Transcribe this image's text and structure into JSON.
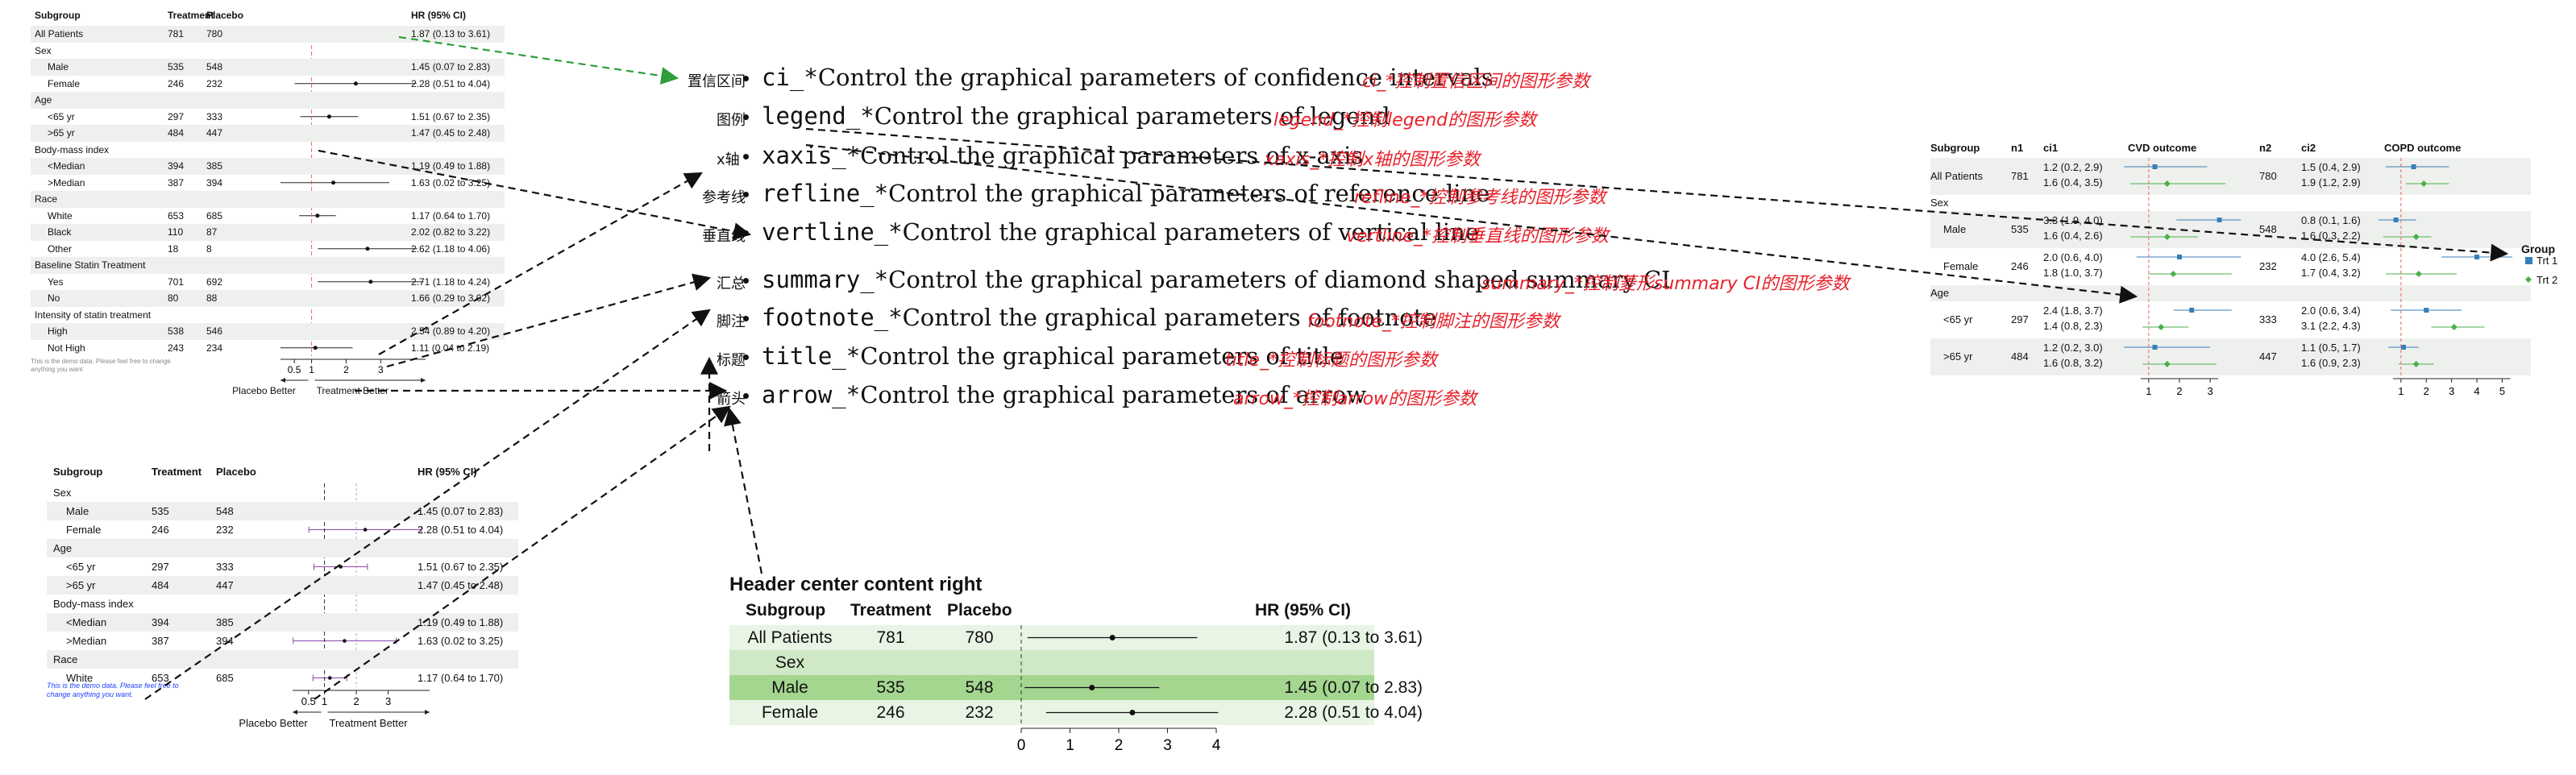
{
  "fp1": {
    "headers": [
      "Subgroup",
      "Treatment",
      "Placebo",
      "HR (95% CI)"
    ],
    "rows": [
      {
        "label": "All Patients",
        "t": "781",
        "p": "780",
        "hr": "1.87 (0.13 to 3.61)",
        "indent": false,
        "est": 1.87,
        "lo": 0.13,
        "hi": 3.61
      },
      {
        "label": "Sex",
        "t": "",
        "p": "",
        "hr": "",
        "indent": false
      },
      {
        "label": "Male",
        "t": "535",
        "p": "548",
        "hr": "1.45 (0.07 to 2.83)",
        "indent": true,
        "est": 1.45,
        "lo": 0.07,
        "hi": 2.83
      },
      {
        "label": "Female",
        "t": "246",
        "p": "232",
        "hr": "2.28 (0.51 to 4.04)",
        "indent": true,
        "est": 2.28,
        "lo": 0.51,
        "hi": 4.04
      },
      {
        "label": "Age",
        "t": "",
        "p": "",
        "hr": "",
        "indent": false
      },
      {
        "label": "<65 yr",
        "t": "297",
        "p": "333",
        "hr": "1.51 (0.67 to 2.35)",
        "indent": true,
        "est": 1.51,
        "lo": 0.67,
        "hi": 2.35
      },
      {
        "label": ">65 yr",
        "t": "484",
        "p": "447",
        "hr": "1.47 (0.45 to 2.48)",
        "indent": true,
        "est": 1.47,
        "lo": 0.45,
        "hi": 2.48
      },
      {
        "label": "Body-mass index",
        "t": "",
        "p": "",
        "hr": "",
        "indent": false
      },
      {
        "label": "<Median",
        "t": "394",
        "p": "385",
        "hr": "1.19 (0.49 to 1.88)",
        "indent": true,
        "est": 1.19,
        "lo": 0.49,
        "hi": 1.88
      },
      {
        "label": ">Median",
        "t": "387",
        "p": "394",
        "hr": "1.63 (0.02 to 3.25)",
        "indent": true,
        "est": 1.63,
        "lo": 0.02,
        "hi": 3.25
      },
      {
        "label": "Race",
        "t": "",
        "p": "",
        "hr": "",
        "indent": false
      },
      {
        "label": "White",
        "t": "653",
        "p": "685",
        "hr": "1.17 (0.64 to 1.70)",
        "indent": true,
        "est": 1.17,
        "lo": 0.64,
        "hi": 1.7
      },
      {
        "label": "Black",
        "t": "110",
        "p": "87",
        "hr": "2.02 (0.82 to 3.22)",
        "indent": true,
        "est": 2.02,
        "lo": 0.82,
        "hi": 3.22
      },
      {
        "label": "Other",
        "t": "18",
        "p": "8",
        "hr": "2.62 (1.18 to 4.06)",
        "indent": true,
        "est": 2.62,
        "lo": 1.18,
        "hi": 4.06
      },
      {
        "label": "Baseline Statin Treatment",
        "t": "",
        "p": "",
        "hr": "",
        "indent": false
      },
      {
        "label": "Yes",
        "t": "701",
        "p": "692",
        "hr": "2.71 (1.18 to 4.24)",
        "indent": true,
        "est": 2.71,
        "lo": 1.18,
        "hi": 4.24
      },
      {
        "label": "No",
        "t": "80",
        "p": "88",
        "hr": "1.66 (0.29 to 3.02)",
        "indent": true,
        "est": 1.66,
        "lo": 0.29,
        "hi": 3.02
      },
      {
        "label": "Intensity of statin treatment",
        "t": "",
        "p": "",
        "hr": "",
        "indent": false
      },
      {
        "label": "High",
        "t": "538",
        "p": "546",
        "hr": "2.54 (0.89 to 4.20)",
        "indent": true,
        "est": 2.54,
        "lo": 0.89,
        "hi": 4.2
      },
      {
        "label": "Not High",
        "t": "243",
        "p": "234",
        "hr": "1.11 (0.04 to 2.19)",
        "indent": true,
        "est": 1.11,
        "lo": 0.04,
        "hi": 2.19
      }
    ],
    "ticks": [
      "0.5",
      "1",
      "2",
      "3"
    ],
    "left_arrow": "Placebo Better",
    "right_arrow": "Treatment Better",
    "note": "This is the demo data. Please feel free to change anything you want"
  },
  "fp2": {
    "headers": [
      "Subgroup",
      "Treatment",
      "Placebo",
      "HR (95% CI)"
    ],
    "rows": [
      {
        "label": "Sex",
        "t": "",
        "p": "",
        "hr": "",
        "indent": false
      },
      {
        "label": "Male",
        "t": "535",
        "p": "548",
        "hr": "1.45 (0.07 to 2.83)",
        "indent": true,
        "est": 1.45,
        "lo": 0.07,
        "hi": 2.83
      },
      {
        "label": "Female",
        "t": "246",
        "p": "232",
        "hr": "2.28 (0.51 to 4.04)",
        "indent": true,
        "est": 2.28,
        "lo": 0.51,
        "hi": 4.04
      },
      {
        "label": "Age",
        "t": "",
        "p": "",
        "hr": "",
        "indent": false
      },
      {
        "label": "<65 yr",
        "t": "297",
        "p": "333",
        "hr": "1.51 (0.67 to 2.35)",
        "indent": true,
        "est": 1.51,
        "lo": 0.67,
        "hi": 2.35
      },
      {
        "label": ">65 yr",
        "t": "484",
        "p": "447",
        "hr": "1.47 (0.45 to 2.48)",
        "indent": true,
        "est": 1.47,
        "lo": 0.45,
        "hi": 2.48
      },
      {
        "label": "Body-mass index",
        "t": "",
        "p": "",
        "hr": "",
        "indent": false
      },
      {
        "label": "<Median",
        "t": "394",
        "p": "385",
        "hr": "1.19 (0.49 to 1.88)",
        "indent": true,
        "est": 1.19,
        "lo": 0.49,
        "hi": 1.88
      },
      {
        "label": ">Median",
        "t": "387",
        "p": "394",
        "hr": "1.63 (0.02 to 3.25)",
        "indent": true,
        "est": 1.63,
        "lo": 0.02,
        "hi": 3.25
      },
      {
        "label": "Race",
        "t": "",
        "p": "",
        "hr": "",
        "indent": false
      },
      {
        "label": "White",
        "t": "653",
        "p": "685",
        "hr": "1.17 (0.64 to 1.70)",
        "indent": true,
        "est": 1.17,
        "lo": 0.64,
        "hi": 1.7
      }
    ],
    "ticks": [
      "0.5",
      "1",
      "2",
      "3"
    ],
    "left_arrow": "Placebo Better",
    "right_arrow": "Treatment Better",
    "note": "This is the demo data. Please feel free to change anything you want."
  },
  "fp3": {
    "title": "Header center content right",
    "headers": [
      "Subgroup",
      "Treatment",
      "Placebo",
      "HR (95% CI)"
    ],
    "rows": [
      {
        "label": "All Patients",
        "t": "781",
        "p": "780",
        "hr": "1.87 (0.13 to 3.61)",
        "est": 1.87,
        "lo": 0.13,
        "hi": 3.61
      },
      {
        "label": "Sex",
        "t": "",
        "p": "",
        "hr": ""
      },
      {
        "label": "Male",
        "t": "535",
        "p": "548",
        "hr": "1.45 (0.07 to 2.83)",
        "est": 1.45,
        "lo": 0.07,
        "hi": 2.83
      },
      {
        "label": "Female",
        "t": "246",
        "p": "232",
        "hr": "2.28 (0.51 to 4.04)",
        "est": 2.28,
        "lo": 0.51,
        "hi": 4.04
      }
    ],
    "ticks": [
      "0",
      "1",
      "2",
      "3",
      "4"
    ]
  },
  "fp4": {
    "headers": [
      "Subgroup",
      "n1",
      "ci1",
      "CVD outcome",
      "n2",
      "ci2",
      "COPD outcome"
    ],
    "rows": [
      {
        "label": "All Patients",
        "n1": "781",
        "ci1a": "1.2 (0.2, 2.9)",
        "ci1b": "1.6 (0.4, 3.5)",
        "n2": "780",
        "ci2a": "1.5 (0.4, 2.9)",
        "ci2b": "1.9 (1.2, 2.9)",
        "indent": false
      },
      {
        "label": "Sex",
        "n1": "",
        "ci1a": "",
        "ci1b": "",
        "n2": "",
        "ci2a": "",
        "ci2b": "",
        "indent": false
      },
      {
        "label": "Male",
        "n1": "535",
        "ci1a": "3.3 (1.9, 4.0)",
        "ci1b": "1.6 (0.4, 2.6)",
        "n2": "548",
        "ci2a": "0.8 (0.1, 1.6)",
        "ci2b": "1.6 (0.3, 2.2)",
        "indent": true
      },
      {
        "label": "Female",
        "n1": "246",
        "ci1a": "2.0 (0.6, 4.0)",
        "ci1b": "1.8 (1.0, 3.7)",
        "n2": "232",
        "ci2a": "4.0 (2.6, 5.4)",
        "ci2b": "1.7 (0.4, 3.2)",
        "indent": true
      },
      {
        "label": "Age",
        "n1": "",
        "ci1a": "",
        "ci1b": "",
        "n2": "",
        "ci2a": "",
        "ci2b": "",
        "indent": false
      },
      {
        "label": "<65 yr",
        "n1": "297",
        "ci1a": "2.4 (1.8, 3.7)",
        "ci1b": "1.4 (0.8, 2.3)",
        "n2": "333",
        "ci2a": "2.0 (0.6, 3.4)",
        "ci2b": "3.1 (2.2, 4.3)",
        "indent": true
      },
      {
        "label": ">65 yr",
        "n1": "484",
        "ci1a": "1.2 (0.2, 3.0)",
        "ci1b": "1.6 (0.8, 3.2)",
        "n2": "447",
        "ci2a": "1.1 (0.5, 1.7)",
        "ci2b": "1.6 (0.9, 2.3)",
        "indent": true
      }
    ],
    "ticks1": [
      "1",
      "2",
      "3"
    ],
    "ticks2": [
      "1",
      "2",
      "3",
      "4",
      "5"
    ],
    "legend_title": "Group",
    "legend": [
      "Trt 1",
      "Trt 2"
    ],
    "colors": {
      "trt1": "#377eb8",
      "trt2": "#4daf4a"
    }
  },
  "params": [
    {
      "cn": "置信区间",
      "code": "ci_*",
      "text": "Control the graphical parameters of confidence intervals",
      "red": "ci_*控制置信区间的图形参数"
    },
    {
      "cn": "图例",
      "code": "legend_*",
      "text": "Control the graphical parameters of legend",
      "red": "legend_*控制legend的图形参数"
    },
    {
      "cn": "x轴",
      "code": "xaxis_*",
      "text": "Control the graphical parameters of x-axis",
      "red": "xaxis_*控制x轴的图形参数"
    },
    {
      "cn": "参考线",
      "code": "refline_*",
      "text": "Control the graphical parameters of reference line",
      "red": "refline_*控制参考线的图形参数"
    },
    {
      "cn": "垂直线",
      "code": "vertline_*",
      "text": "Control the graphical parameters of vertical line",
      "red": "vertline_*控制垂直线的图形参数"
    },
    {
      "cn": "汇总",
      "code": "summary_*",
      "text": "Control the graphical parameters of diamond shaped summary CI",
      "red": "summary_*控制菱形summary CI的图形参数"
    },
    {
      "cn": "脚注",
      "code": "footnote_*",
      "text": "Control the graphical parameters of footnote",
      "red": "footnote_*控制脚注的图形参数"
    },
    {
      "cn": "标题",
      "code": "title_*",
      "text": "Control the graphical parameters of title",
      "red": "title_*控制标题的图形参数"
    },
    {
      "cn": "箭头",
      "code": "arrow_*",
      "text": "Control the graphical parameters of arrow",
      "red": "arrow_*控制arrow的图形参数"
    }
  ]
}
